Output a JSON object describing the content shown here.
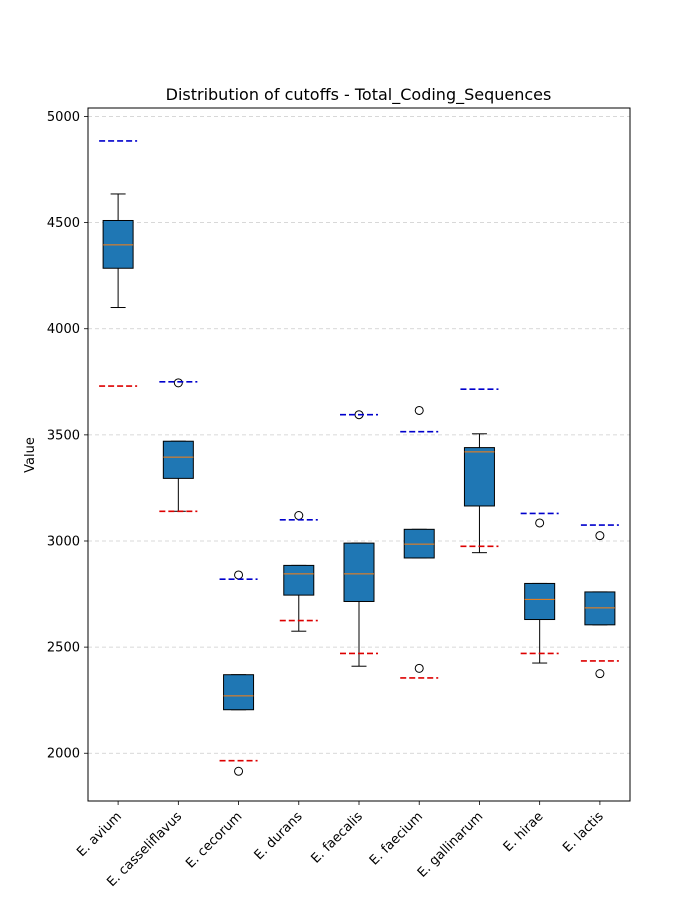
{
  "chart_data": {
    "type": "boxplot",
    "title": "Distribution of cutoffs - Total_Coding_Sequences",
    "xlabel": "",
    "ylabel": "Value",
    "ylim": [
      1775,
      5040
    ],
    "yticks": [
      2000,
      2500,
      3000,
      3500,
      4000,
      4500,
      5000
    ],
    "grid": "horizontal dashed",
    "colors": {
      "box_fill": "#1f77b4",
      "median": "#ff7f0e",
      "upper_cutoff": "#0000cc",
      "lower_cutoff": "#dd0000",
      "grid": "#cccccc"
    },
    "categories": [
      "E. avium",
      "E. casseliflavus",
      "E. cecorum",
      "E. durans",
      "E. faecalis",
      "E. faecium",
      "E. gallinarum",
      "E. hirae",
      "E. lactis"
    ],
    "boxes": [
      {
        "whisker_low": 4100,
        "q1": 4285,
        "median": 4395,
        "q3": 4510,
        "whisker_high": 4635,
        "outliers": [],
        "upper_cutoff": 4885,
        "lower_cutoff": 3730
      },
      {
        "whisker_low": 3140,
        "q1": 3295,
        "median": 3395,
        "q3": 3470,
        "whisker_high": 3470,
        "outliers": [
          3745
        ],
        "upper_cutoff": 3750,
        "lower_cutoff": 3140
      },
      {
        "whisker_low": 2205,
        "q1": 2205,
        "median": 2270,
        "q3": 2370,
        "whisker_high": 2370,
        "outliers": [
          2840,
          1915
        ],
        "upper_cutoff": 2820,
        "lower_cutoff": 1965
      },
      {
        "whisker_low": 2575,
        "q1": 2745,
        "median": 2845,
        "q3": 2885,
        "whisker_high": 2885,
        "outliers": [
          3120
        ],
        "upper_cutoff": 3100,
        "lower_cutoff": 2625
      },
      {
        "whisker_low": 2410,
        "q1": 2715,
        "median": 2845,
        "q3": 2990,
        "whisker_high": 2990,
        "outliers": [
          3595
        ],
        "upper_cutoff": 3595,
        "lower_cutoff": 2470
      },
      {
        "whisker_low": 2920,
        "q1": 2920,
        "median": 2985,
        "q3": 3055,
        "whisker_high": 3055,
        "outliers": [
          3615,
          2400
        ],
        "upper_cutoff": 3515,
        "lower_cutoff": 2355
      },
      {
        "whisker_low": 2945,
        "q1": 3165,
        "median": 3420,
        "q3": 3440,
        "whisker_high": 3505,
        "outliers": [],
        "upper_cutoff": 3715,
        "lower_cutoff": 2975
      },
      {
        "whisker_low": 2425,
        "q1": 2630,
        "median": 2725,
        "q3": 2800,
        "whisker_high": 2800,
        "outliers": [
          3085
        ],
        "upper_cutoff": 3130,
        "lower_cutoff": 2470
      },
      {
        "whisker_low": 2605,
        "q1": 2605,
        "median": 2685,
        "q3": 2760,
        "whisker_high": 2760,
        "outliers": [
          3025,
          2375
        ],
        "upper_cutoff": 3075,
        "lower_cutoff": 2435
      }
    ]
  }
}
